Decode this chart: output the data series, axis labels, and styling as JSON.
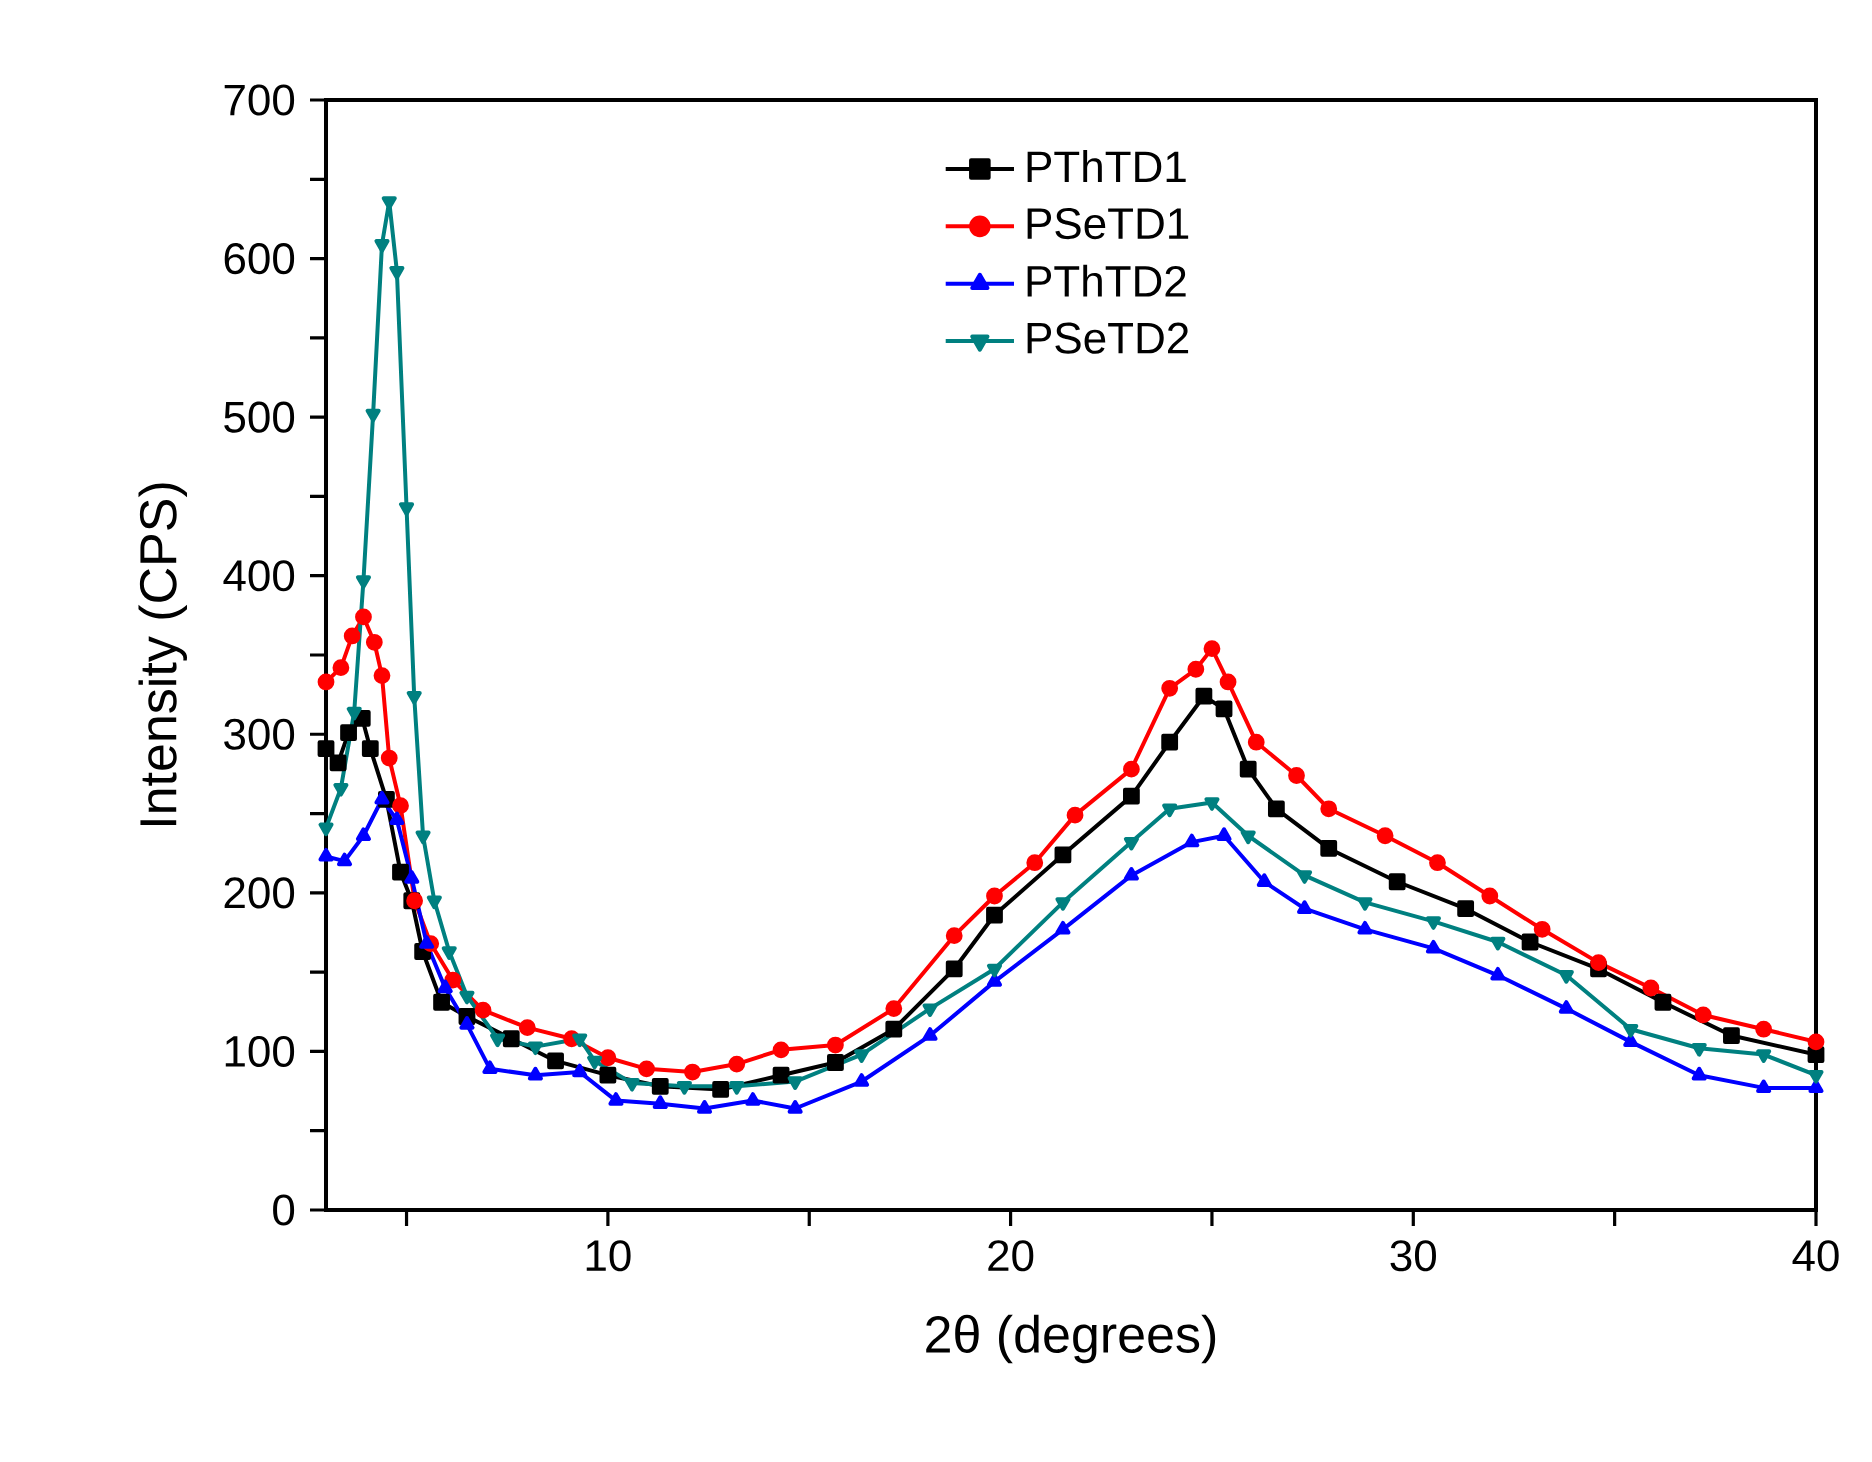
{
  "chart_data": {
    "type": "line",
    "xlabel": "2θ (degrees)",
    "ylabel": "Intensity (CPS)",
    "xlim": [
      3,
      40
    ],
    "ylim": [
      0,
      700
    ],
    "xticks": [
      {
        "value": 5,
        "label": null
      },
      10,
      {
        "value": 15,
        "label": null
      },
      20,
      {
        "value": 25,
        "label": null
      },
      30,
      {
        "value": 35,
        "label": null
      },
      40
    ],
    "yticks": [
      0,
      {
        "value": 50,
        "label": null
      },
      100,
      {
        "value": 150,
        "label": null
      },
      200,
      {
        "value": 250,
        "label": null
      },
      300,
      {
        "value": 350,
        "label": null
      },
      400,
      {
        "value": 450,
        "label": null
      },
      500,
      {
        "value": 550,
        "label": null
      },
      600,
      {
        "value": 650,
        "label": null
      },
      700
    ],
    "legend": "top",
    "grid": false,
    "line_style": "solid",
    "series": [
      {
        "name": "PThTD1",
        "color": "#000000",
        "marker": "square",
        "x": [
          3.0,
          3.3,
          3.56,
          3.9,
          4.1,
          4.5,
          4.85,
          5.13,
          5.4,
          5.87,
          6.5,
          7.6,
          8.7,
          10.0,
          11.3,
          12.8,
          14.3,
          15.65,
          17.1,
          18.6,
          19.6,
          21.3,
          23.0,
          23.95,
          24.8,
          25.3,
          25.9,
          26.6,
          27.9,
          29.6,
          31.3,
          32.9,
          34.6,
          36.2,
          37.9,
          40.0
        ],
        "values": [
          291,
          282,
          301,
          310,
          291,
          259,
          213,
          195,
          163,
          131,
          122,
          108,
          94,
          85,
          78,
          76,
          85,
          93,
          114,
          152,
          186,
          224,
          261,
          295,
          324,
          316,
          278,
          253,
          228,
          207,
          190,
          169,
          152,
          131,
          110,
          98
        ]
      },
      {
        "name": "PSeTD1",
        "color": "#ff0000",
        "marker": "circle",
        "x": [
          3.0,
          3.37,
          3.65,
          3.93,
          4.2,
          4.39,
          4.57,
          4.85,
          5.2,
          5.6,
          6.15,
          6.9,
          8.0,
          9.1,
          10.0,
          10.96,
          12.1,
          13.2,
          14.3,
          15.65,
          17.1,
          18.6,
          19.6,
          20.6,
          21.6,
          23.0,
          23.95,
          24.6,
          25.0,
          25.4,
          26.1,
          27.1,
          27.9,
          29.3,
          30.6,
          31.9,
          33.2,
          34.6,
          35.9,
          37.2,
          38.7,
          40.0
        ],
        "values": [
          333,
          342,
          362,
          374,
          358,
          337,
          285,
          255,
          195,
          168,
          145,
          126,
          115,
          108,
          96,
          89,
          87,
          92,
          101,
          104,
          127,
          173,
          198,
          219,
          249,
          278,
          329,
          341,
          354,
          333,
          295,
          274,
          253,
          236,
          219,
          198,
          177,
          156,
          140,
          123,
          114,
          106
        ]
      },
      {
        "name": "PThTD2",
        "color": "#0000ff",
        "marker": "triangle",
        "x": [
          3.0,
          3.46,
          3.93,
          4.39,
          4.76,
          5.13,
          5.5,
          5.96,
          6.5,
          7.07,
          8.2,
          9.3,
          10.2,
          11.3,
          12.4,
          13.6,
          14.65,
          16.3,
          18.0,
          19.6,
          21.3,
          23.0,
          24.5,
          25.3,
          26.3,
          27.3,
          28.8,
          30.5,
          32.1,
          33.8,
          35.4,
          37.1,
          38.7,
          40.0
        ],
        "values": [
          223,
          220,
          236,
          259,
          246,
          209,
          168,
          140,
          117,
          89,
          85,
          87,
          69,
          67,
          64,
          69,
          64,
          81,
          110,
          144,
          177,
          211,
          232,
          236,
          207,
          190,
          177,
          165,
          148,
          127,
          106,
          85,
          77,
          77
        ]
      },
      {
        "name": "PSeTD2",
        "color": "#008080",
        "marker": "triangle down",
        "x": [
          3.0,
          3.37,
          3.7,
          3.93,
          4.17,
          4.39,
          4.57,
          4.76,
          5.0,
          5.19,
          5.41,
          5.69,
          6.06,
          6.5,
          7.26,
          8.2,
          9.3,
          9.67,
          10.6,
          11.9,
          13.2,
          14.65,
          16.3,
          18.0,
          19.6,
          21.3,
          23.0,
          23.95,
          25.0,
          25.9,
          27.3,
          28.8,
          30.5,
          32.1,
          33.8,
          35.4,
          37.1,
          38.7,
          40.0
        ],
        "values": [
          241,
          266,
          314,
          397,
          502,
          609,
          636,
          592,
          443,
          324,
          236,
          195,
          163,
          135,
          108,
          103,
          108,
          94,
          80,
          78,
          78,
          81,
          98,
          127,
          152,
          194,
          232,
          253,
          257,
          236,
          211,
          194,
          182,
          169,
          148,
          114,
          102,
          98,
          85
        ]
      }
    ]
  }
}
